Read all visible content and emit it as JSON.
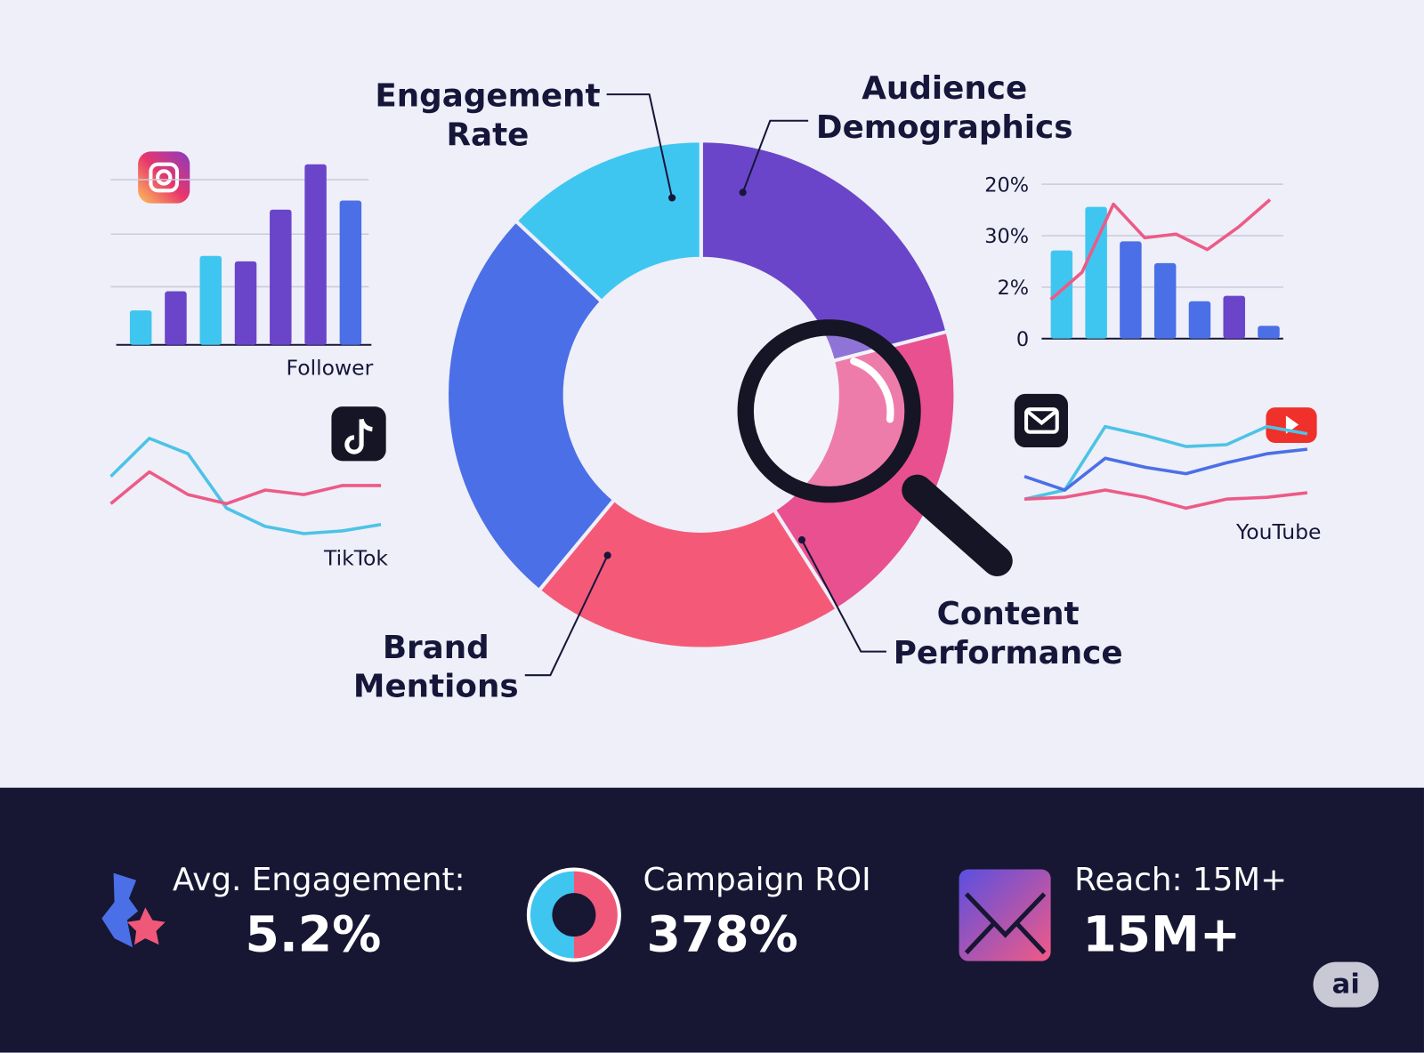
{
  "donut": {
    "segments": [
      {
        "label": "Audience Demographics",
        "value": 21,
        "color": "#6a45c9"
      },
      {
        "label": "Content Performance",
        "value": 20,
        "color": "#e9508f"
      },
      {
        "label": "Brand Mentions",
        "value": 20,
        "color": "#f45a78"
      },
      {
        "value": 26,
        "color": "#4b6fe6"
      },
      {
        "label": "Engagement Rate",
        "value": 13,
        "color": "#3fc6f0"
      }
    ]
  },
  "follower_chart": {
    "label": "Follower",
    "values": [
      38,
      59,
      98,
      92,
      149,
      199,
      159
    ],
    "colors": [
      "#3fc6f0",
      "#6a45c9",
      "#3fc6f0",
      "#6a45c9",
      "#6a45c9",
      "#6a45c9",
      "#4b6fe6"
    ]
  },
  "tiktok_chart": {
    "label": "TikTok",
    "series": [
      {
        "color": "#4cc3e6",
        "values": [
          75,
          117,
          100,
          40,
          20,
          12,
          15,
          22
        ]
      },
      {
        "color": "#ec5b86",
        "values": [
          45,
          80,
          55,
          45,
          60,
          55,
          65,
          65
        ]
      }
    ]
  },
  "youtube_chart": {
    "label": "YouTube",
    "series": [
      {
        "color": "#4cc3e6",
        "values": [
          50,
          60,
          130,
          120,
          108,
          110,
          130,
          122
        ]
      },
      {
        "color": "#4b6fe6",
        "values": [
          75,
          60,
          95,
          85,
          78,
          90,
          100,
          105
        ]
      },
      {
        "color": "#ec5b86",
        "values": [
          50,
          52,
          60,
          52,
          40,
          50,
          52,
          57
        ]
      }
    ]
  },
  "right_chart": {
    "tick_labels": [
      "20%",
      "30%",
      "2%",
      "0"
    ],
    "values": [
      97,
      145,
      107,
      83,
      41,
      47,
      14
    ],
    "colors": [
      "#3fc6f0",
      "#3fc6f0",
      "#4b6fe6",
      "#4b6fe6",
      "#4b6fe6",
      "#6a45c9",
      "#4b6fe6"
    ],
    "line": {
      "color": "#ec5b86",
      "values": [
        43,
        73,
        148,
        111,
        115,
        98,
        123,
        153
      ]
    }
  },
  "stats": [
    {
      "label": "Avg. Engagement:",
      "value": "5.2%"
    },
    {
      "label": "Campaign ROI",
      "value": "378%"
    },
    {
      "label": "Reach: 15M+",
      "value": "15M+"
    }
  ],
  "badge": "ai"
}
